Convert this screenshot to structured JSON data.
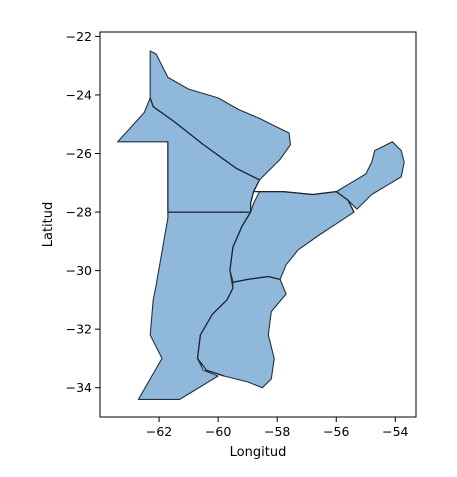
{
  "chart_data": {
    "type": "map",
    "xlabel": "Longitud",
    "ylabel": "Latitud",
    "xlim": [
      -64.0,
      -53.3
    ],
    "ylim": [
      -35.0,
      -21.85
    ],
    "xticks": [
      -62,
      -60,
      -58,
      -56,
      -54
    ],
    "yticks": [
      -22,
      -24,
      -26,
      -28,
      -30,
      -32,
      -34
    ],
    "grid": false,
    "fill_color": "#8fb8db",
    "edge_color": "#22313f",
    "regions": [
      {
        "id": "north-west",
        "coords": [
          [
            -62.3,
            -22.5
          ],
          [
            -62.1,
            -22.6
          ],
          [
            -61.7,
            -23.4
          ],
          [
            -61.0,
            -23.8
          ],
          [
            -60.0,
            -24.1
          ],
          [
            -59.3,
            -24.5
          ],
          [
            -58.6,
            -24.8
          ],
          [
            -58.0,
            -25.1
          ],
          [
            -57.6,
            -25.3
          ],
          [
            -57.55,
            -25.7
          ],
          [
            -57.9,
            -26.2
          ],
          [
            -58.3,
            -26.6
          ],
          [
            -58.6,
            -26.9
          ],
          [
            -59.4,
            -26.5
          ],
          [
            -60.5,
            -25.7
          ],
          [
            -61.5,
            -24.9
          ],
          [
            -62.2,
            -24.4
          ],
          [
            -62.3,
            -24.1
          ]
        ]
      },
      {
        "id": "west-upper",
        "coords": [
          [
            -62.3,
            -24.1
          ],
          [
            -62.2,
            -24.4
          ],
          [
            -61.5,
            -24.9
          ],
          [
            -60.5,
            -25.7
          ],
          [
            -59.4,
            -26.5
          ],
          [
            -58.6,
            -26.9
          ],
          [
            -58.8,
            -27.3
          ],
          [
            -58.9,
            -27.7
          ],
          [
            -58.9,
            -28.0
          ],
          [
            -61.7,
            -28.0
          ],
          [
            -61.7,
            -25.6
          ],
          [
            -63.4,
            -25.6
          ],
          [
            -62.5,
            -24.6
          ]
        ]
      },
      {
        "id": "west-lower",
        "coords": [
          [
            -61.7,
            -28.0
          ],
          [
            -58.9,
            -28.0
          ],
          [
            -59.2,
            -28.5
          ],
          [
            -59.5,
            -29.2
          ],
          [
            -59.6,
            -30.0
          ],
          [
            -59.5,
            -30.6
          ],
          [
            -59.7,
            -31.0
          ],
          [
            -60.2,
            -31.5
          ],
          [
            -60.6,
            -32.2
          ],
          [
            -60.7,
            -33.0
          ],
          [
            -60.5,
            -33.4
          ],
          [
            -60.0,
            -33.6
          ],
          [
            -61.3,
            -34.4
          ],
          [
            -62.7,
            -34.4
          ],
          [
            -61.9,
            -33.0
          ],
          [
            -62.3,
            -32.2
          ],
          [
            -62.2,
            -31.0
          ],
          [
            -62.1,
            -30.5
          ],
          [
            -61.7,
            -28.2
          ]
        ]
      },
      {
        "id": "center-east",
        "coords": [
          [
            -58.9,
            -28.0
          ],
          [
            -58.8,
            -27.7
          ],
          [
            -58.6,
            -27.3
          ],
          [
            -57.8,
            -27.3
          ],
          [
            -56.8,
            -27.4
          ],
          [
            -56.0,
            -27.3
          ],
          [
            -55.6,
            -27.6
          ],
          [
            -55.4,
            -28.0
          ],
          [
            -56.0,
            -28.4
          ],
          [
            -56.6,
            -28.8
          ],
          [
            -57.3,
            -29.3
          ],
          [
            -57.7,
            -29.8
          ],
          [
            -57.9,
            -30.3
          ],
          [
            -58.3,
            -30.2
          ],
          [
            -59.0,
            -30.3
          ],
          [
            -59.5,
            -30.4
          ],
          [
            -59.6,
            -30.0
          ],
          [
            -59.5,
            -29.2
          ],
          [
            -59.2,
            -28.5
          ]
        ]
      },
      {
        "id": "south-east",
        "coords": [
          [
            -59.5,
            -30.4
          ],
          [
            -59.0,
            -30.3
          ],
          [
            -58.3,
            -30.2
          ],
          [
            -57.9,
            -30.3
          ],
          [
            -57.7,
            -30.8
          ],
          [
            -58.2,
            -31.4
          ],
          [
            -58.3,
            -32.2
          ],
          [
            -58.1,
            -33.0
          ],
          [
            -58.2,
            -33.7
          ],
          [
            -58.5,
            -34.0
          ],
          [
            -59.0,
            -33.8
          ],
          [
            -59.8,
            -33.6
          ],
          [
            -60.4,
            -33.4
          ],
          [
            -60.7,
            -33.0
          ],
          [
            -60.6,
            -32.2
          ],
          [
            -60.2,
            -31.5
          ],
          [
            -59.7,
            -31.0
          ],
          [
            -59.5,
            -30.6
          ]
        ]
      },
      {
        "id": "north-east",
        "coords": [
          [
            -56.0,
            -27.3
          ],
          [
            -55.5,
            -27.0
          ],
          [
            -55.0,
            -26.7
          ],
          [
            -54.8,
            -26.3
          ],
          [
            -54.7,
            -25.9
          ],
          [
            -54.1,
            -25.6
          ],
          [
            -53.8,
            -25.9
          ],
          [
            -53.7,
            -26.3
          ],
          [
            -53.8,
            -26.8
          ],
          [
            -54.3,
            -27.1
          ],
          [
            -54.8,
            -27.4
          ],
          [
            -55.3,
            -27.9
          ],
          [
            -55.6,
            -27.6
          ]
        ]
      }
    ],
    "borders": [
      [
        [
          -62.3,
          -24.1
        ],
        [
          -62.2,
          -24.4
        ],
        [
          -61.5,
          -24.9
        ],
        [
          -60.5,
          -25.7
        ],
        [
          -59.4,
          -26.5
        ],
        [
          -58.6,
          -26.9
        ]
      ],
      [
        [
          -58.6,
          -26.9
        ],
        [
          -58.8,
          -27.3
        ],
        [
          -58.9,
          -27.7
        ],
        [
          -58.9,
          -28.0
        ],
        [
          -59.2,
          -28.5
        ],
        [
          -59.5,
          -29.2
        ],
        [
          -59.6,
          -30.0
        ],
        [
          -59.5,
          -30.4
        ]
      ],
      [
        [
          -58.8,
          -27.3
        ],
        [
          -57.8,
          -27.3
        ],
        [
          -56.8,
          -27.4
        ],
        [
          -56.0,
          -27.3
        ]
      ],
      [
        [
          -56.0,
          -27.3
        ],
        [
          -55.6,
          -27.6
        ],
        [
          -55.4,
          -28.0
        ]
      ],
      [
        [
          -59.5,
          -30.4
        ],
        [
          -59.0,
          -30.3
        ],
        [
          -58.3,
          -30.2
        ],
        [
          -57.9,
          -30.3
        ]
      ],
      [
        [
          -59.5,
          -30.6
        ],
        [
          -59.7,
          -31.0
        ],
        [
          -60.2,
          -31.5
        ],
        [
          -60.6,
          -32.2
        ],
        [
          -60.7,
          -33.0
        ],
        [
          -60.4,
          -33.4
        ],
        [
          -59.8,
          -33.6
        ]
      ],
      [
        [
          -61.7,
          -25.6
        ],
        [
          -61.7,
          -28.0
        ],
        [
          -58.9,
          -28.0
        ]
      ]
    ]
  }
}
